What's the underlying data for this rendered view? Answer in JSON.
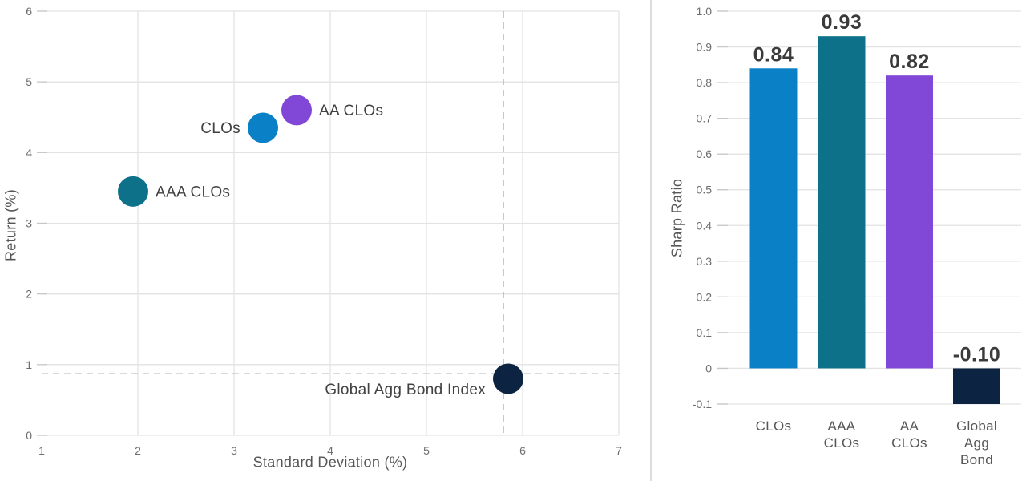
{
  "page": {
    "background": "#ffffff",
    "divider_color": "#dcdcdc"
  },
  "palette": {
    "clo_blue": "#0a80c6",
    "aaa_clo_teal": "#0d7189",
    "aa_clo_purple": "#8147d6",
    "global_agg_navy": "#0c2342",
    "grid_line": "#e3e3e3",
    "tick_stub": "#c7c7c7",
    "dashed_reference": "#b5b5b5",
    "tick_text": "#6e6e6e",
    "label_text": "#414141",
    "value_text": "#3b3b3b"
  },
  "chart_data": [
    {
      "type": "scatter",
      "xlabel": "Standard Deviation (%)",
      "ylabel": "Return (%)",
      "xlim": [
        1,
        7
      ],
      "ylim": [
        0,
        6
      ],
      "xticks": [
        "1",
        "2",
        "3",
        "4",
        "5",
        "6",
        "7"
      ],
      "yticks": [
        "0",
        "1",
        "2",
        "3",
        "4",
        "5",
        "6"
      ],
      "grid": true,
      "points": [
        {
          "label": "CLOs",
          "x": 3.3,
          "y": 4.35,
          "color": "#0a80c6",
          "label_side": "left",
          "label_dy": 0
        },
        {
          "label": "AA CLOs",
          "x": 3.65,
          "y": 4.6,
          "color": "#8147d6",
          "label_side": "right",
          "label_dy": 0
        },
        {
          "label": "AAA CLOs",
          "x": 1.95,
          "y": 3.45,
          "color": "#0d7189",
          "label_side": "right",
          "label_dy": 0
        },
        {
          "label": "Global Agg Bond Index",
          "x": 5.85,
          "y": 0.8,
          "color": "#0c2342",
          "label_side": "left",
          "label_dy": 13
        }
      ],
      "reference_lines": {
        "x": 5.8,
        "y": 0.87
      }
    },
    {
      "type": "bar",
      "ylabel": "Sharp Ratio",
      "ylim": [
        -0.1,
        1.0
      ],
      "yticks": [
        "-0.1",
        "0",
        "0.1",
        "0.2",
        "0.3",
        "0.4",
        "0.5",
        "0.6",
        "0.7",
        "0.8",
        "0.9",
        "1.0"
      ],
      "grid": true,
      "categories": [
        [
          "CLOs"
        ],
        [
          "AAA",
          "CLOs"
        ],
        [
          "AA",
          "CLOs"
        ],
        [
          "Global",
          "Agg",
          "Bond"
        ]
      ],
      "values": [
        0.84,
        0.93,
        0.82,
        -0.1
      ],
      "value_labels": [
        "0.84",
        "0.93",
        "0.82",
        "-0.10"
      ],
      "colors": [
        "#0a80c6",
        "#0d7189",
        "#8147d6",
        "#0c2342"
      ]
    }
  ]
}
